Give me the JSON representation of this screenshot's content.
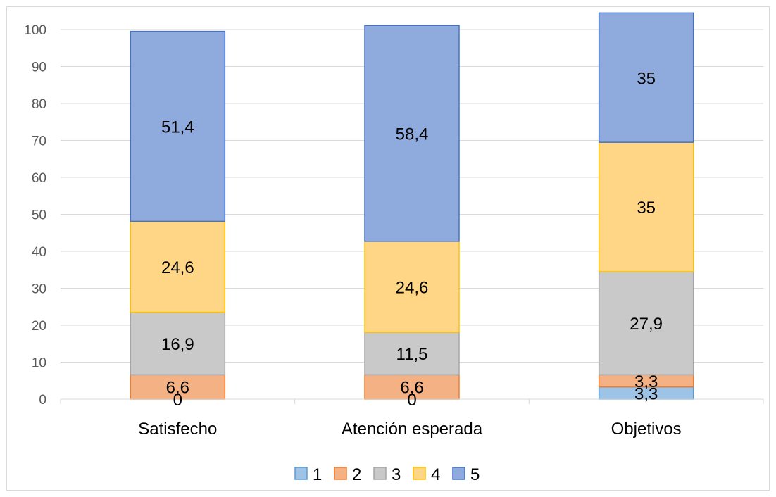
{
  "chart_data": {
    "type": "bar",
    "stacked": true,
    "categories": [
      "Satisfecho",
      "Atención esperada",
      "Objetivos"
    ],
    "series": [
      {
        "name": "1",
        "values": [
          0,
          0,
          3.3
        ],
        "labels": [
          "0",
          "0",
          "3,3"
        ],
        "color": "#9dc3e6",
        "stroke": "#5b9bd5"
      },
      {
        "name": "2",
        "values": [
          6.6,
          6.6,
          3.3
        ],
        "labels": [
          "6,6",
          "6,6",
          "3,3"
        ],
        "color": "#f4b183",
        "stroke": "#ed7d31"
      },
      {
        "name": "3",
        "values": [
          16.9,
          11.5,
          27.9
        ],
        "labels": [
          "16,9",
          "11,5",
          "27,9"
        ],
        "color": "#c9c9c9",
        "stroke": "#a5a5a5"
      },
      {
        "name": "4",
        "values": [
          24.6,
          24.6,
          35
        ],
        "labels": [
          "24,6",
          "24,6",
          "35"
        ],
        "color": "#ffd685",
        "stroke": "#ffc000"
      },
      {
        "name": "5",
        "values": [
          51.4,
          58.4,
          35
        ],
        "labels": [
          "51,4",
          "58,4",
          "35"
        ],
        "color": "#8faadc",
        "stroke": "#4472c4"
      }
    ],
    "ylim": [
      0,
      100
    ],
    "yticks": [
      0,
      10,
      20,
      30,
      40,
      50,
      60,
      70,
      80,
      90,
      100
    ],
    "grid": true,
    "legend": "bottom",
    "title": "",
    "xlabel": "",
    "ylabel": ""
  }
}
